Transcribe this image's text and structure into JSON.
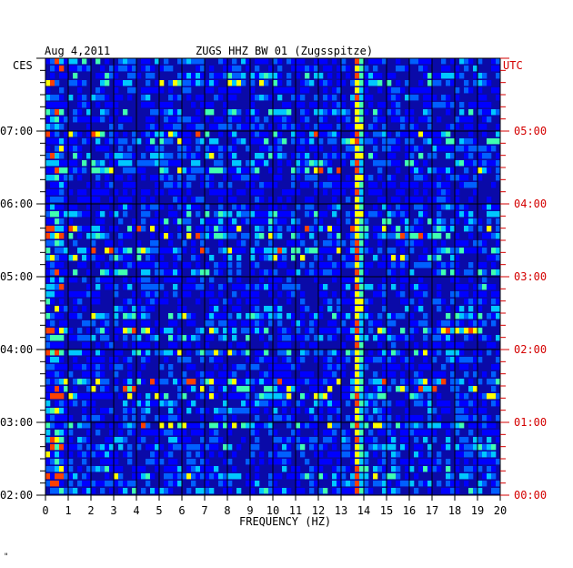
{
  "header": {
    "date": "Aug 4,2011",
    "station": "ZUGS HHZ BW 01 (Zugsspitze)"
  },
  "footer_mark": "\"",
  "chart_data": {
    "type": "heatmap",
    "title": "ZUGS HHZ BW 01 (Zugsspitze)",
    "date": "Aug 4,2011",
    "xlabel": "FREQUENCY (HZ)",
    "xlim": [
      0,
      20
    ],
    "x_ticks": [
      "0",
      "1",
      "2",
      "3",
      "4",
      "5",
      "6",
      "7",
      "8",
      "9",
      "10",
      "11",
      "12",
      "13",
      "14",
      "15",
      "16",
      "17",
      "18",
      "19",
      "20"
    ],
    "left_axis_label": "CES",
    "right_axis_label": "UTC",
    "left_ticks": [
      "02:00",
      "03:00",
      "04:00",
      "05:00",
      "06:00",
      "07:00"
    ],
    "right_ticks": [
      "00:00",
      "01:00",
      "02:00",
      "03:00",
      "04:00",
      "05:00"
    ],
    "time_range_utc": [
      "00:00",
      "06:00"
    ],
    "colors": {
      "background": "#0a0aa8",
      "low": "#0000ff",
      "mid": "#00c8ff",
      "high": "#ffff00",
      "peak": "#ff0000",
      "left_axis_text": "#000000",
      "right_axis_text": "#d40000"
    },
    "persistent_line_hz": 13.6,
    "grid": true
  }
}
